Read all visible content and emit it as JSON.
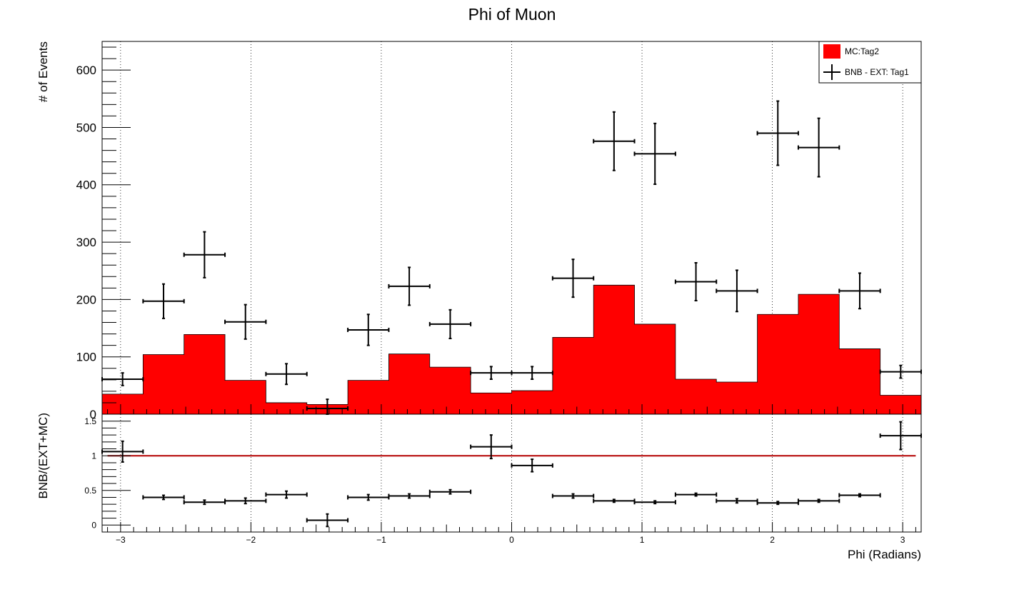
{
  "chart_data": {
    "type": "bar",
    "title": "Phi of Muon",
    "xlabel": "Phi (Radians)",
    "xlim": [
      -3.14159,
      3.14159
    ],
    "bin_edges": [
      -3.14159,
      -2.82743,
      -2.51327,
      -2.19911,
      -1.88496,
      -1.5708,
      -1.25664,
      -0.94248,
      -0.62832,
      -0.31416,
      0.0,
      0.31416,
      0.62832,
      0.94248,
      1.25664,
      1.5708,
      1.88496,
      2.19911,
      2.51327,
      2.82743,
      3.14159
    ],
    "x_ticks": [
      -3,
      -2,
      -1,
      0,
      1,
      2,
      3
    ],
    "x_tick_labels": [
      "−3",
      "−2",
      "−1",
      "0",
      "1",
      "2",
      "3"
    ],
    "top_panel": {
      "ylabel": "# of Events",
      "ylim": [
        0,
        650
      ],
      "y_ticks": [
        0,
        100,
        200,
        300,
        400,
        500,
        600
      ],
      "y_tick_labels": [
        "0",
        "100",
        "200",
        "300",
        "400",
        "500",
        "600"
      ],
      "series": [
        {
          "name": "MC:Tag2",
          "kind": "filled-histogram",
          "color": "#ff0000",
          "values": [
            35,
            104,
            139,
            59,
            20,
            17,
            59,
            105,
            82,
            37,
            41,
            134,
            225,
            157,
            61,
            56,
            174,
            209,
            114,
            33
          ]
        },
        {
          "name": "BNB - EXT: Tag1",
          "kind": "points-with-errors",
          "color": "#000000",
          "values": [
            61,
            197,
            278,
            161,
            70,
            10,
            147,
            223,
            157,
            72,
            72,
            237,
            476,
            454,
            231,
            215,
            490,
            465,
            215,
            74
          ],
          "errors": [
            11,
            30,
            40,
            30,
            18,
            16,
            27,
            33,
            25,
            11,
            11,
            33,
            51,
            53,
            33,
            36,
            56,
            51,
            31,
            11
          ]
        }
      ],
      "legend": {
        "position": "top-right",
        "entries": [
          {
            "label": "MC:Tag2",
            "style": "fill",
            "color": "#ff0000"
          },
          {
            "label": "BNB - EXT: Tag1",
            "style": "errorbar",
            "color": "#000000"
          }
        ]
      }
    },
    "ratio_panel": {
      "ylabel": "BNB/(EXT+MC)",
      "ylim": [
        -0.1,
        1.6
      ],
      "y_ticks": [
        0,
        0.5,
        1,
        1.5
      ],
      "y_tick_labels": [
        "0",
        "0.5",
        "1",
        "1.5"
      ],
      "reference_line": {
        "value": 1,
        "color": "#b30000"
      },
      "series": [
        {
          "name": "BNB/(EXT+MC)",
          "kind": "points-with-errors",
          "color": "#000000",
          "values": [
            1.06,
            0.4,
            0.33,
            0.35,
            0.44,
            0.07,
            0.4,
            0.42,
            0.48,
            1.13,
            0.86,
            0.42,
            0.35,
            0.33,
            0.44,
            0.35,
            0.32,
            0.35,
            0.43,
            1.29
          ],
          "errors": [
            0.15,
            0.03,
            0.03,
            0.04,
            0.05,
            0.09,
            0.04,
            0.03,
            0.03,
            0.17,
            0.09,
            0.03,
            0.02,
            0.02,
            0.02,
            0.03,
            0.02,
            0.02,
            0.02,
            0.2
          ]
        }
      ]
    },
    "grid": {
      "x": true,
      "y": false
    }
  }
}
